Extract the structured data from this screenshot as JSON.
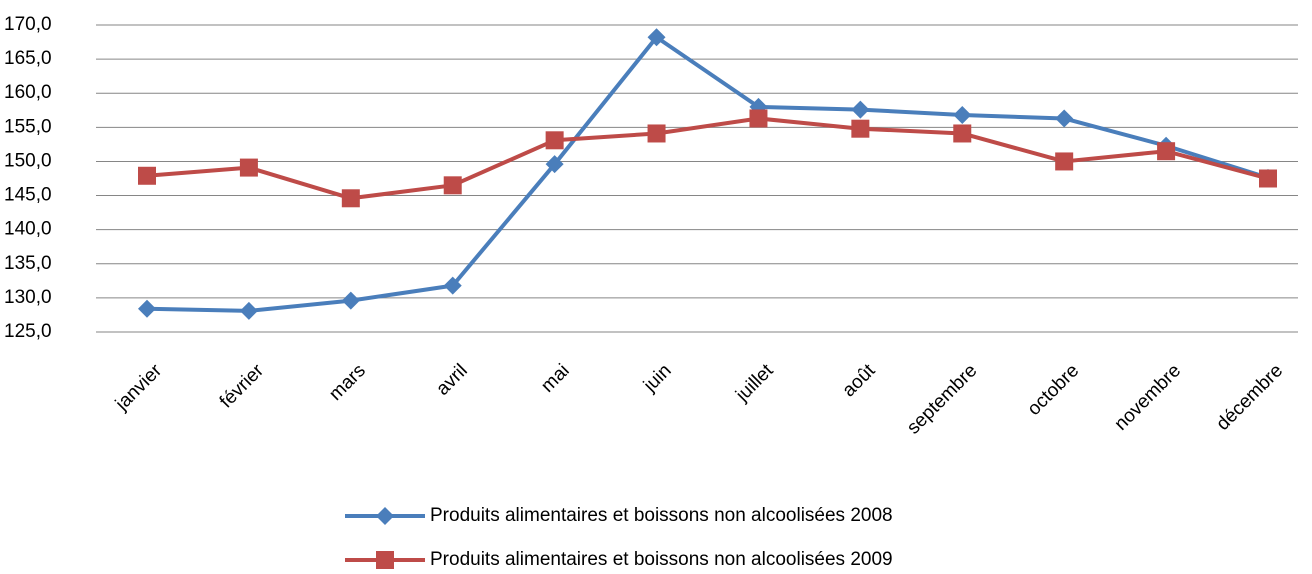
{
  "chart_data": {
    "type": "line",
    "categories": [
      "janvier",
      "février",
      "mars",
      "avril",
      "mai",
      "juin",
      "juillet",
      "août",
      "septembre",
      "octobre",
      "novembre",
      "décembre"
    ],
    "series": [
      {
        "name": "Produits alimentaires et boissons non alcoolisées 2008",
        "color": "#4a7ebb",
        "marker": "diamond",
        "values": [
          128.4,
          128.1,
          129.6,
          131.8,
          149.6,
          168.2,
          158.0,
          157.6,
          156.8,
          156.3,
          152.3,
          147.6
        ]
      },
      {
        "name": "Produits alimentaires et boissons non alcoolisées 2009",
        "color": "#be4b48",
        "marker": "square",
        "values": [
          147.9,
          149.1,
          144.6,
          146.5,
          153.1,
          154.1,
          156.3,
          154.8,
          154.1,
          150.0,
          151.5,
          147.5
        ]
      }
    ],
    "ylim": [
      125,
      170
    ],
    "yticks": [
      {
        "value": 125,
        "label": "125,0"
      },
      {
        "value": 130,
        "label": "130,0"
      },
      {
        "value": 135,
        "label": "135,0"
      },
      {
        "value": 140,
        "label": "140,0"
      },
      {
        "value": 145,
        "label": "145,0"
      },
      {
        "value": 150,
        "label": "150,0"
      },
      {
        "value": 155,
        "label": "155,0"
      },
      {
        "value": 160,
        "label": "160,0"
      },
      {
        "value": 165,
        "label": "165,0"
      },
      {
        "value": 170,
        "label": "170,0"
      }
    ],
    "grid": true,
    "legend": "bottom"
  }
}
